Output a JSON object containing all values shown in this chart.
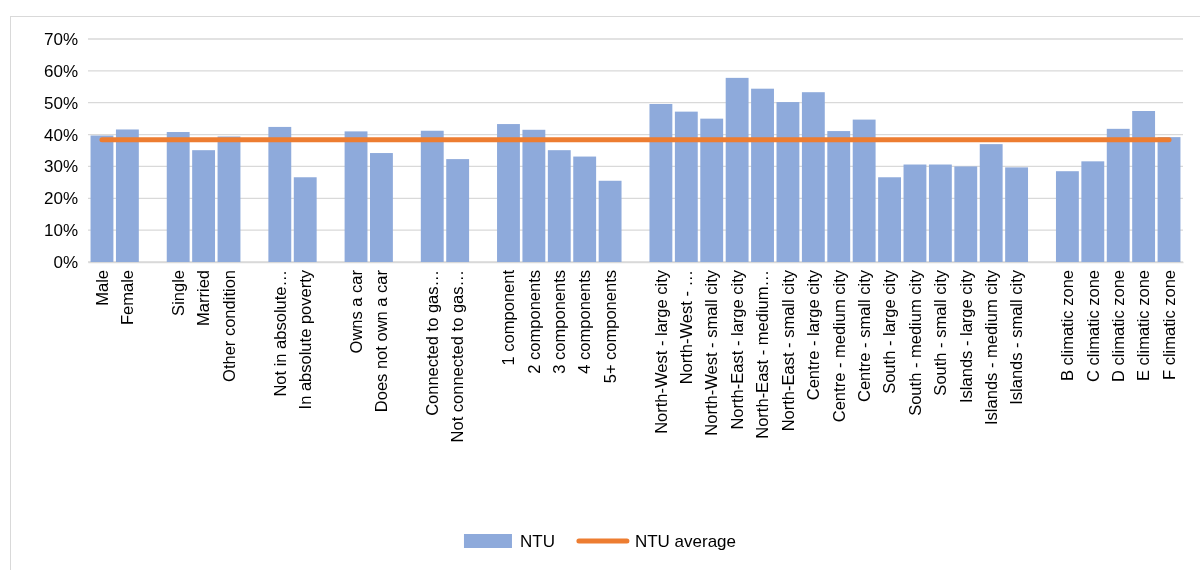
{
  "chart_data": {
    "type": "bar",
    "categories": [
      "Male",
      "Female",
      null,
      "Single",
      "Married",
      "Other condition",
      null,
      "Not in absolute…",
      "In absolute poverty",
      null,
      "Owns a car",
      "Does not own a car",
      null,
      "Connected to gas…",
      "Not connected to gas…",
      null,
      "1 component",
      "2 components",
      "3 components",
      "4 components",
      "5+ components",
      null,
      "North-West - large city",
      "North-West - …",
      "North-West - small city",
      "North-East - large city",
      "North-East - medium…",
      "North-East - small city",
      "Centre - large city",
      "Centre - medium city",
      "Centre - small city",
      "South - large city",
      "South - medium city",
      "South - small city",
      "Islands - large city",
      "Islands - medium city",
      "Islands - small city",
      null,
      "B climatic zone",
      "C climatic zone",
      "D climatic zone",
      "E climatic zone",
      "F climatic zone"
    ],
    "series": [
      {
        "name": "NTU",
        "color": "#8eaadb",
        "values": [
          39.7,
          41.6,
          null,
          40.8,
          35.1,
          39.4,
          null,
          42.4,
          26.6,
          null,
          41.0,
          34.2,
          null,
          41.2,
          32.3,
          null,
          43.3,
          41.5,
          35.1,
          33.1,
          25.5,
          null,
          49.6,
          47.2,
          45.0,
          57.8,
          54.4,
          50.2,
          53.3,
          41.1,
          44.7,
          26.6,
          30.6,
          30.6,
          30.0,
          37.0,
          29.7,
          null,
          28.5,
          31.6,
          41.8,
          47.4,
          39.2
        ]
      },
      {
        "name": "NTU average",
        "type": "line",
        "color": "#ed7d31",
        "values": [
          38.4,
          38.4,
          38.4,
          38.4,
          38.4,
          38.4,
          38.4,
          38.4,
          38.4,
          38.4,
          38.4,
          38.4,
          38.4,
          38.4,
          38.4,
          38.4,
          38.4,
          38.4,
          38.4,
          38.4,
          38.4,
          38.4,
          38.4,
          38.4,
          38.4,
          38.4,
          38.4,
          38.4,
          38.4,
          38.4,
          38.4,
          38.4,
          38.4,
          38.4,
          38.4,
          38.4,
          38.4,
          38.4,
          38.4,
          38.4,
          38.4,
          38.4,
          38.4
        ]
      }
    ],
    "ylim": [
      0,
      70
    ],
    "yticks": [
      {
        "value": 0,
        "label": "0%"
      },
      {
        "value": 10,
        "label": "10%"
      },
      {
        "value": 20,
        "label": "20%"
      },
      {
        "value": 30,
        "label": "30%"
      },
      {
        "value": 40,
        "label": "40%"
      },
      {
        "value": 50,
        "label": "50%"
      },
      {
        "value": 60,
        "label": "60%"
      },
      {
        "value": 70,
        "label": "70%"
      }
    ],
    "grid": "y",
    "legend": "bottom",
    "marker": "none",
    "line_style": "solid"
  }
}
